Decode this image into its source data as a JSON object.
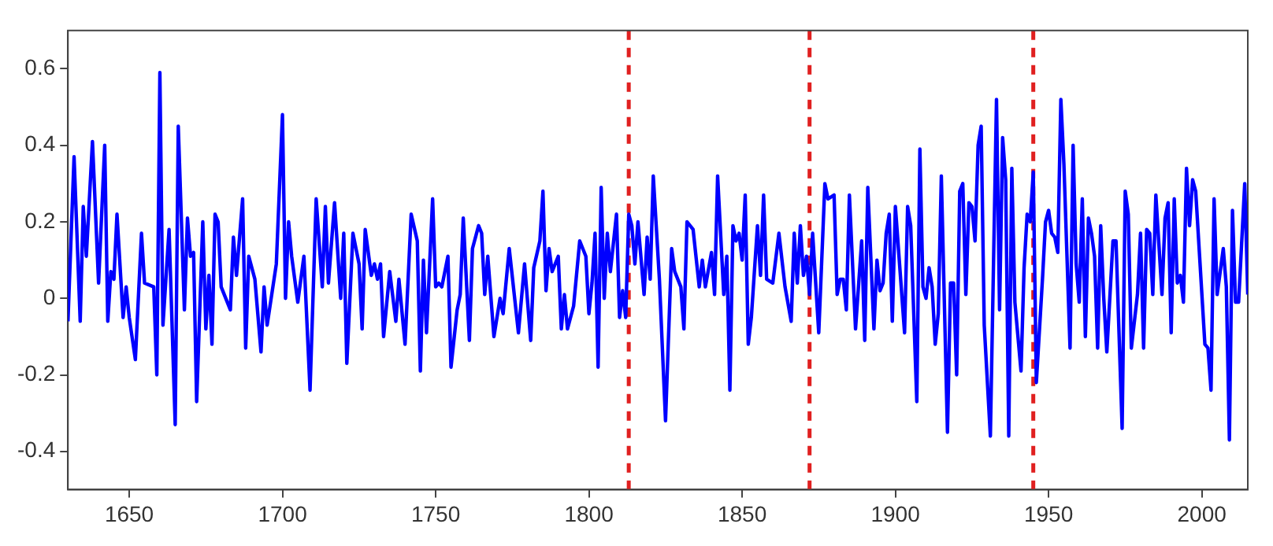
{
  "chart_data": {
    "type": "line",
    "xlim": [
      1630,
      2015
    ],
    "xticks": [
      1650,
      1700,
      1750,
      1800,
      1850,
      1900,
      1950,
      2000
    ],
    "ylim": [
      -0.5,
      0.7
    ],
    "yticks": [
      -0.4,
      -0.2,
      0,
      0.2,
      0.4,
      0.6
    ],
    "grid": false,
    "legend": false,
    "marker": "none",
    "line_style": "solid",
    "series": [
      {
        "color": "#0000ff",
        "x": [
          1630,
          1632,
          1634,
          1635,
          1636,
          1638,
          1640,
          1642,
          1643,
          1644,
          1645,
          1646,
          1648,
          1649,
          1650,
          1652,
          1654,
          1655,
          1658,
          1659,
          1660,
          1661,
          1663,
          1665,
          1666,
          1668,
          1669,
          1670,
          1671,
          1672,
          1674,
          1675,
          1676,
          1677,
          1678,
          1679,
          1680,
          1683,
          1684,
          1685,
          1687,
          1688,
          1689,
          1691,
          1693,
          1694,
          1695,
          1698,
          1700,
          1701,
          1702,
          1703,
          1705,
          1707,
          1709,
          1711,
          1713,
          1714,
          1715,
          1717,
          1719,
          1720,
          1721,
          1723,
          1725,
          1726,
          1727,
          1729,
          1730,
          1731,
          1732,
          1733,
          1735,
          1737,
          1738,
          1740,
          1742,
          1744,
          1745,
          1746,
          1747,
          1749,
          1750,
          1751,
          1752,
          1754,
          1755,
          1757,
          1758,
          1759,
          1761,
          1762,
          1764,
          1765,
          1766,
          1767,
          1769,
          1771,
          1772,
          1774,
          1777,
          1779,
          1781,
          1782,
          1784,
          1785,
          1786,
          1787,
          1788,
          1790,
          1791,
          1792,
          1793,
          1795,
          1797,
          1799,
          1800,
          1801,
          1802,
          1803,
          1804,
          1805,
          1806,
          1807,
          1809,
          1810,
          1811,
          1812,
          1813,
          1814,
          1815,
          1816,
          1818,
          1819,
          1820,
          1821,
          1823,
          1825,
          1827,
          1828,
          1830,
          1831,
          1832,
          1834,
          1836,
          1837,
          1838,
          1840,
          1841,
          1842,
          1844,
          1845,
          1846,
          1847,
          1848,
          1849,
          1850,
          1851,
          1852,
          1853,
          1855,
          1856,
          1857,
          1858,
          1860,
          1862,
          1864,
          1866,
          1867,
          1868,
          1869,
          1870,
          1871,
          1872,
          1873,
          1875,
          1877,
          1878,
          1880,
          1881,
          1882,
          1883,
          1884,
          1885,
          1887,
          1889,
          1890,
          1891,
          1893,
          1894,
          1895,
          1896,
          1897,
          1898,
          1899,
          1900,
          1901,
          1903,
          1904,
          1905,
          1907,
          1908,
          1909,
          1910,
          1911,
          1912,
          1913,
          1914,
          1915,
          1917,
          1918,
          1919,
          1920,
          1921,
          1922,
          1923,
          1924,
          1925,
          1926,
          1927,
          1928,
          1929,
          1931,
          1933,
          1934,
          1935,
          1936,
          1937,
          1938,
          1939,
          1941,
          1942,
          1943,
          1944,
          1945,
          1946,
          1948,
          1949,
          1950,
          1951,
          1952,
          1953,
          1954,
          1955,
          1957,
          1958,
          1959,
          1960,
          1961,
          1962,
          1963,
          1964,
          1965,
          1966,
          1967,
          1968,
          1969,
          1971,
          1972,
          1974,
          1975,
          1976,
          1977,
          1979,
          1980,
          1981,
          1982,
          1983,
          1984,
          1985,
          1987,
          1988,
          1989,
          1990,
          1991,
          1992,
          1993,
          1994,
          1995,
          1996,
          1997,
          1998,
          2001,
          2002,
          2003,
          2004,
          2005,
          2006,
          2007,
          2008,
          2009,
          2010,
          2011,
          2012,
          2014,
          2015
        ],
        "values": [
          -0.06,
          0.37,
          -0.06,
          0.24,
          0.11,
          0.41,
          0.04,
          0.4,
          -0.06,
          0.07,
          0.05,
          0.22,
          -0.05,
          0.03,
          -0.05,
          -0.16,
          0.17,
          0.04,
          0.03,
          -0.2,
          0.59,
          -0.07,
          0.18,
          -0.33,
          0.45,
          -0.03,
          0.21,
          0.11,
          0.12,
          -0.27,
          0.2,
          -0.08,
          0.06,
          -0.12,
          0.22,
          0.2,
          0.03,
          -0.03,
          0.16,
          0.06,
          0.26,
          -0.13,
          0.11,
          0.05,
          -0.14,
          0.03,
          -0.07,
          0.09,
          0.48,
          0.0,
          0.2,
          0.11,
          -0.01,
          0.11,
          -0.24,
          0.26,
          0.03,
          0.24,
          0.04,
          0.25,
          0.0,
          0.17,
          -0.17,
          0.17,
          0.09,
          -0.08,
          0.18,
          0.06,
          0.09,
          0.05,
          0.09,
          -0.1,
          0.07,
          -0.06,
          0.05,
          -0.12,
          0.22,
          0.15,
          -0.19,
          0.1,
          -0.09,
          0.26,
          0.03,
          0.04,
          0.03,
          0.11,
          -0.18,
          -0.03,
          0.01,
          0.21,
          -0.11,
          0.13,
          0.19,
          0.17,
          0.01,
          0.11,
          -0.1,
          0.0,
          -0.04,
          0.13,
          -0.09,
          0.09,
          -0.11,
          0.08,
          0.15,
          0.28,
          0.02,
          0.13,
          0.07,
          0.11,
          -0.08,
          0.01,
          -0.08,
          -0.02,
          0.15,
          0.11,
          -0.04,
          0.04,
          0.17,
          -0.18,
          0.29,
          0.0,
          0.17,
          0.07,
          0.22,
          -0.05,
          0.02,
          -0.05,
          0.22,
          0.19,
          0.09,
          0.2,
          0.01,
          0.16,
          0.05,
          0.32,
          0.05,
          -0.32,
          0.13,
          0.07,
          0.03,
          -0.08,
          0.2,
          0.18,
          0.03,
          0.1,
          0.03,
          0.12,
          0.01,
          0.32,
          0.01,
          0.11,
          -0.24,
          0.19,
          0.15,
          0.17,
          0.1,
          0.27,
          -0.12,
          -0.05,
          0.19,
          0.06,
          0.27,
          0.05,
          0.04,
          0.17,
          0.03,
          -0.06,
          0.17,
          0.04,
          0.19,
          0.06,
          0.11,
          0.01,
          0.17,
          -0.09,
          0.3,
          0.26,
          0.27,
          0.01,
          0.05,
          0.05,
          -0.03,
          0.27,
          -0.08,
          0.15,
          -0.11,
          0.29,
          -0.08,
          0.1,
          0.02,
          0.04,
          0.17,
          0.22,
          -0.06,
          0.24,
          0.13,
          -0.09,
          0.24,
          0.19,
          -0.27,
          0.39,
          0.03,
          0.0,
          0.08,
          0.03,
          -0.12,
          -0.04,
          0.32,
          -0.35,
          0.04,
          0.04,
          -0.2,
          0.28,
          0.3,
          0.01,
          0.25,
          0.24,
          0.15,
          0.4,
          0.45,
          -0.07,
          -0.36,
          0.52,
          -0.03,
          0.42,
          0.31,
          -0.36,
          0.34,
          -0.01,
          -0.19,
          0.08,
          0.22,
          0.2,
          0.33,
          -0.22,
          0.05,
          0.2,
          0.23,
          0.17,
          0.16,
          0.12,
          0.52,
          0.35,
          -0.13,
          0.4,
          0.09,
          -0.01,
          0.26,
          -0.1,
          0.21,
          0.17,
          0.11,
          -0.13,
          0.19,
          0.0,
          -0.14,
          0.15,
          0.15,
          -0.34,
          0.28,
          0.22,
          -0.13,
          0.01,
          0.17,
          -0.13,
          0.18,
          0.17,
          0.01,
          0.27,
          0.01,
          0.21,
          0.25,
          -0.09,
          0.26,
          0.04,
          0.06,
          -0.01,
          0.34,
          0.19,
          0.31,
          0.28,
          -0.12,
          -0.13,
          -0.24,
          0.26,
          0.01,
          0.07,
          0.13,
          0.03,
          -0.37,
          0.23,
          -0.01,
          -0.01,
          0.3,
          0.01
        ]
      }
    ],
    "ref_lines": [
      {
        "axis": "x",
        "value": 1813,
        "color": "#e02020",
        "line_style": "dashed"
      },
      {
        "axis": "x",
        "value": 1872,
        "color": "#e02020",
        "line_style": "dashed"
      },
      {
        "axis": "x",
        "value": 1945,
        "color": "#e02020",
        "line_style": "dashed"
      }
    ]
  }
}
